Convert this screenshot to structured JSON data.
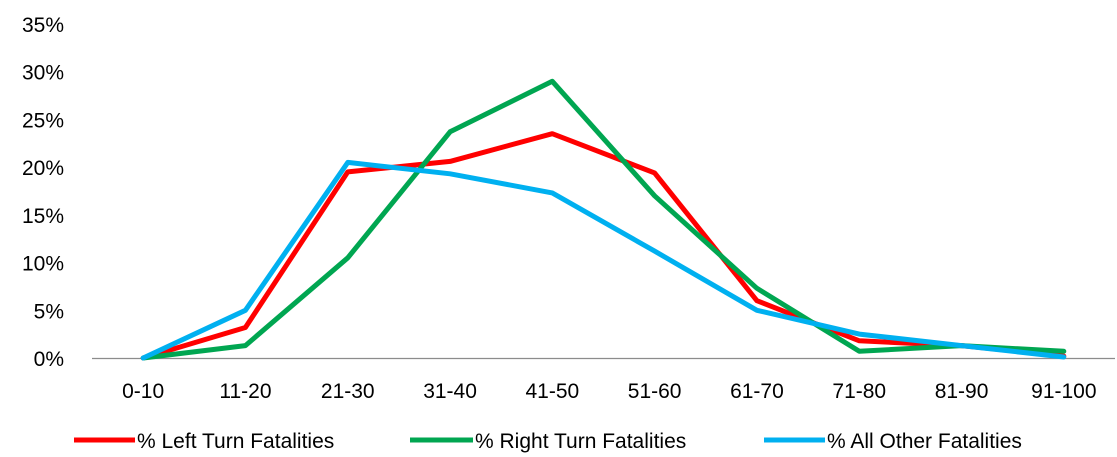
{
  "chart_data": {
    "type": "line",
    "title": "",
    "xlabel": "",
    "ylabel": "",
    "categories": [
      "0-10",
      "11-20",
      "21-30",
      "31-40",
      "41-50",
      "51-60",
      "61-70",
      "71-80",
      "81-90",
      "91-100"
    ],
    "ylim": [
      0,
      35
    ],
    "yticks": [
      0,
      5,
      10,
      15,
      20,
      25,
      30,
      35
    ],
    "ytick_labels": [
      "0%",
      "5%",
      "10%",
      "15%",
      "20%",
      "25%",
      "30%",
      "35%"
    ],
    "grid": false,
    "legend_position": "bottom",
    "series": [
      {
        "name": "% Left Turn Fatalities",
        "color": "#ff0000",
        "values": [
          0,
          3.2,
          19.5,
          20.6,
          23.5,
          19.4,
          6.0,
          1.8,
          1.3,
          0.2
        ]
      },
      {
        "name": "% Right Turn Fatalities",
        "color": "#00a651",
        "values": [
          0,
          1.3,
          10.5,
          23.7,
          29.0,
          17.0,
          7.3,
          0.7,
          1.3,
          0.7
        ]
      },
      {
        "name": "% All Other Fatalities",
        "color": "#00b0f0",
        "values": [
          0,
          5.0,
          20.5,
          19.3,
          17.3,
          11.2,
          5.0,
          2.5,
          1.3,
          0.1
        ]
      }
    ]
  }
}
